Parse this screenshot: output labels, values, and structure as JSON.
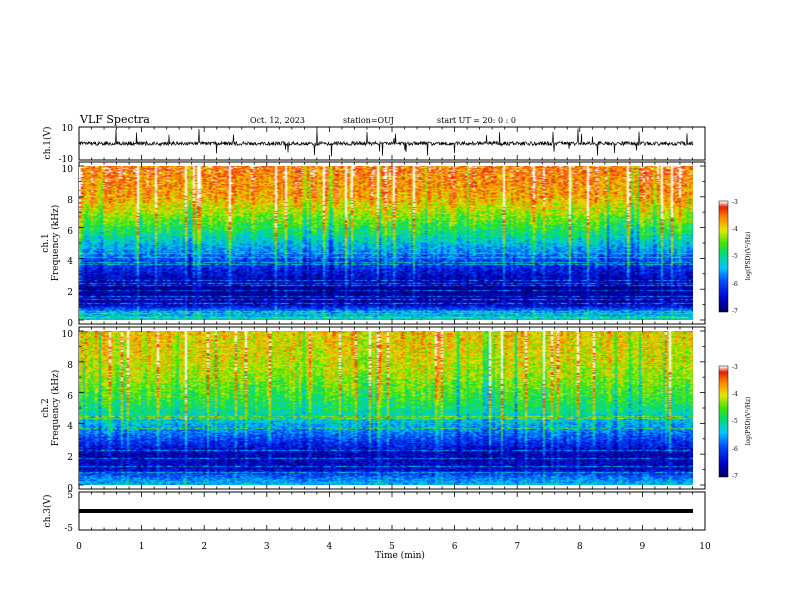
{
  "header": {
    "title": "VLF Spectra",
    "date": "Oct. 12, 2023",
    "station": "station=OUJ",
    "start_ut": "start UT =  20: 0  : 0"
  },
  "chart_data": [
    {
      "type": "line",
      "panel": "ch1-waveform",
      "ylabel": "ch.1(V)",
      "ylim": [
        -10,
        10
      ],
      "yticks": [
        "10",
        "-10"
      ],
      "xlim": [
        0,
        10
      ],
      "trace": "dense noisy waveform centered near 0 V with spikes toward +10 and -10"
    },
    {
      "type": "heatmap",
      "panel": "ch1-spectrogram",
      "ylabel_line1": "ch.1",
      "ylabel_line2": "Frequency (kHz)",
      "ylim": [
        0,
        10
      ],
      "yticks": [
        "0",
        "2",
        "4",
        "6",
        "8",
        "10"
      ],
      "xlim": [
        0,
        9.8
      ],
      "colorbar": {
        "label": "log(PSD)(V²/Hz)",
        "ticks": [
          "-3",
          "-4",
          "-5",
          "-6",
          "-7"
        ],
        "range": [
          -7,
          -3
        ]
      },
      "level_profile": [
        {
          "f": 0,
          "v": -5.2
        },
        {
          "f": 0.5,
          "v": -5.6
        },
        {
          "f": 1,
          "v": -6.6
        },
        {
          "f": 2,
          "v": -6.8
        },
        {
          "f": 3,
          "v": -6.4
        },
        {
          "f": 4,
          "v": -5.9
        },
        {
          "f": 5,
          "v": -5.3
        },
        {
          "f": 6,
          "v": -4.7
        },
        {
          "f": 7,
          "v": -4.2
        },
        {
          "f": 8,
          "v": -3.7
        },
        {
          "f": 10,
          "v": -3.4
        }
      ]
    },
    {
      "type": "heatmap",
      "panel": "ch2-spectrogram",
      "ylabel_line1": "ch.2",
      "ylabel_line2": "Frequency (kHz)",
      "ylim": [
        0,
        10
      ],
      "yticks": [
        "0",
        "2",
        "4",
        "6",
        "8",
        "10"
      ],
      "xlim": [
        0,
        9.8
      ],
      "colorbar": {
        "label": "log(PSD)(V²/Hz)",
        "ticks": [
          "-3",
          "-4",
          "-5",
          "-6",
          "-7"
        ],
        "range": [
          -7,
          -3
        ]
      },
      "level_profile": [
        {
          "f": 0,
          "v": -5.4
        },
        {
          "f": 0.5,
          "v": -5.8
        },
        {
          "f": 1,
          "v": -6.5
        },
        {
          "f": 2,
          "v": -6.6
        },
        {
          "f": 3,
          "v": -6.0
        },
        {
          "f": 4,
          "v": -5.4
        },
        {
          "f": 5,
          "v": -4.9
        },
        {
          "f": 6,
          "v": -4.6
        },
        {
          "f": 7,
          "v": -4.3
        },
        {
          "f": 8,
          "v": -4.1
        },
        {
          "f": 10,
          "v": -3.9
        }
      ]
    },
    {
      "type": "line",
      "panel": "ch3-waveform",
      "ylabel": "ch.3(V)",
      "ylim": [
        -5,
        5
      ],
      "yticks": [
        "5",
        "-5"
      ],
      "xlim": [
        0,
        10
      ],
      "x": [
        0,
        9.8
      ],
      "y": [
        -1,
        -1
      ]
    }
  ],
  "xaxis": {
    "label": "Time (min)",
    "ticks": [
      "0",
      "1",
      "2",
      "3",
      "4",
      "5",
      "6",
      "7",
      "8",
      "9",
      "10"
    ]
  }
}
